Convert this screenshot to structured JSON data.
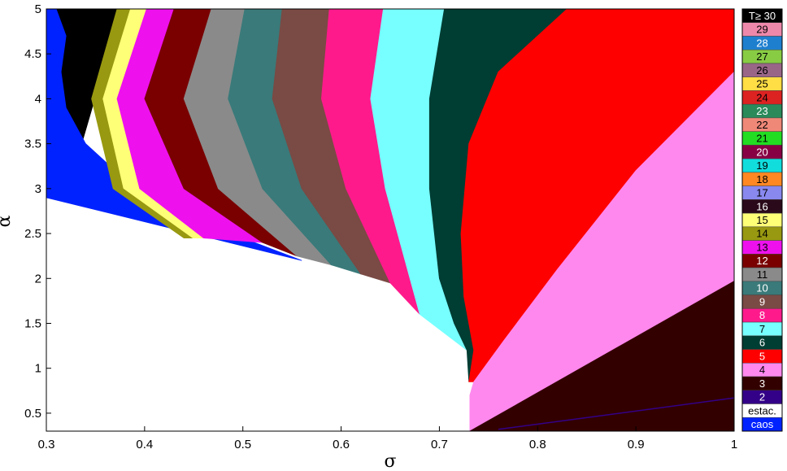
{
  "chart_data": {
    "type": "heatmap",
    "xlabel": "σ",
    "ylabel": "α",
    "xlim": [
      0.3,
      1.0
    ],
    "ylim": [
      0.3,
      5.0
    ],
    "x_ticks": [
      "0.3",
      "0.4",
      "0.5",
      "0.6",
      "0.7",
      "0.8",
      "0.9",
      "1"
    ],
    "y_ticks": [
      "0.5",
      "1",
      "1.5",
      "2",
      "2.5",
      "3",
      "3.5",
      "4",
      "4.5",
      "5"
    ],
    "legend_position": "right",
    "legend": [
      {
        "label": "T≥ 30",
        "color": "#000000",
        "text_color": "#ffffff"
      },
      {
        "label": "29",
        "color": "#ee88aa",
        "text_color": "#000000"
      },
      {
        "label": "28",
        "color": "#1f7fcf",
        "text_color": "#ffffff"
      },
      {
        "label": "27",
        "color": "#88cc44",
        "text_color": "#000000"
      },
      {
        "label": "26",
        "color": "#996688",
        "text_color": "#000000"
      },
      {
        "label": "25",
        "color": "#ffdd44",
        "text_color": "#000000"
      },
      {
        "label": "24",
        "color": "#dd2222",
        "text_color": "#000000"
      },
      {
        "label": "23",
        "color": "#2a8a5a",
        "text_color": "#ffffff"
      },
      {
        "label": "22",
        "color": "#f08878",
        "text_color": "#000000"
      },
      {
        "label": "21",
        "color": "#22dd22",
        "text_color": "#000000"
      },
      {
        "label": "20",
        "color": "#880044",
        "text_color": "#ffffff"
      },
      {
        "label": "19",
        "color": "#11dddd",
        "text_color": "#000000"
      },
      {
        "label": "18",
        "color": "#ff8822",
        "text_color": "#000000"
      },
      {
        "label": "17",
        "color": "#8888ee",
        "text_color": "#000000"
      },
      {
        "label": "16",
        "color": "#2a0a1a",
        "text_color": "#ffffff"
      },
      {
        "label": "15",
        "color": "#ffff77",
        "text_color": "#000000"
      },
      {
        "label": "14",
        "color": "#999911",
        "text_color": "#000000"
      },
      {
        "label": "13",
        "color": "#ee11ee",
        "text_color": "#000000"
      },
      {
        "label": "12",
        "color": "#7a0000",
        "text_color": "#ffffff"
      },
      {
        "label": "11",
        "color": "#8a8a8a",
        "text_color": "#000000"
      },
      {
        "label": "10",
        "color": "#3a7a7a",
        "text_color": "#ffffff"
      },
      {
        "label": "9",
        "color": "#7a4a44",
        "text_color": "#ffffff"
      },
      {
        "label": "8",
        "color": "#ff1a8c",
        "text_color": "#ffffff"
      },
      {
        "label": "7",
        "color": "#77ffff",
        "text_color": "#000000"
      },
      {
        "label": "6",
        "color": "#003d33",
        "text_color": "#ffffff"
      },
      {
        "label": "5",
        "color": "#ff0000",
        "text_color": "#ffffff"
      },
      {
        "label": "4",
        "color": "#ff88ee",
        "text_color": "#000000"
      },
      {
        "label": "3",
        "color": "#330000",
        "text_color": "#ffffff"
      },
      {
        "label": "2",
        "color": "#330088",
        "text_color": "#ffffff"
      },
      {
        "label": "estac.",
        "color": "#ffffff",
        "text_color": "#000000"
      },
      {
        "label": "caos",
        "color": "#0022ff",
        "text_color": "#ffffff"
      }
    ],
    "regions": [
      {
        "label": "T≥ 30",
        "color": "#000000",
        "polygon": [
          [
            0.3,
            5.0
          ],
          [
            0.372,
            5.0
          ],
          [
            0.352,
            4.1
          ],
          [
            0.336,
            3.5
          ],
          [
            0.33,
            3.1
          ],
          [
            0.335,
            2.85
          ],
          [
            0.31,
            2.88
          ],
          [
            0.3,
            2.9
          ]
        ]
      },
      {
        "label": "caos",
        "color": "#0022ff",
        "polygon": [
          [
            0.3,
            5.0
          ],
          [
            0.31,
            5.0
          ],
          [
            0.32,
            4.7
          ],
          [
            0.315,
            4.3
          ],
          [
            0.32,
            3.9
          ],
          [
            0.34,
            3.5
          ],
          [
            0.4,
            2.9
          ],
          [
            0.5,
            2.45
          ],
          [
            0.56,
            2.2
          ],
          [
            0.3,
            2.9
          ]
        ]
      },
      {
        "label": "15",
        "color": "#ffff77",
        "polygon": [
          [
            0.385,
            5.0
          ],
          [
            0.402,
            5.0
          ],
          [
            0.372,
            4.0
          ],
          [
            0.395,
            3.0
          ],
          [
            0.46,
            2.45
          ],
          [
            0.448,
            2.45
          ],
          [
            0.378,
            3.0
          ],
          [
            0.357,
            4.0
          ]
        ]
      },
      {
        "label": "14",
        "color": "#999911",
        "polygon": [
          [
            0.372,
            5.0
          ],
          [
            0.385,
            5.0
          ],
          [
            0.357,
            4.0
          ],
          [
            0.378,
            3.0
          ],
          [
            0.448,
            2.45
          ],
          [
            0.44,
            2.45
          ],
          [
            0.368,
            3.0
          ],
          [
            0.346,
            4.0
          ]
        ]
      },
      {
        "label": "13",
        "color": "#ee11ee",
        "polygon": [
          [
            0.402,
            5.0
          ],
          [
            0.43,
            5.0
          ],
          [
            0.4,
            4.0
          ],
          [
            0.44,
            3.0
          ],
          [
            0.52,
            2.4
          ],
          [
            0.46,
            2.45
          ],
          [
            0.395,
            3.0
          ],
          [
            0.372,
            4.0
          ]
        ]
      },
      {
        "label": "12",
        "color": "#7a0000",
        "polygon": [
          [
            0.43,
            5.0
          ],
          [
            0.468,
            5.0
          ],
          [
            0.44,
            4.0
          ],
          [
            0.475,
            3.0
          ],
          [
            0.555,
            2.25
          ],
          [
            0.52,
            2.4
          ],
          [
            0.44,
            3.0
          ],
          [
            0.4,
            4.0
          ]
        ]
      },
      {
        "label": "11",
        "color": "#8a8a8a",
        "polygon": [
          [
            0.468,
            5.0
          ],
          [
            0.502,
            5.0
          ],
          [
            0.485,
            4.0
          ],
          [
            0.52,
            3.0
          ],
          [
            0.59,
            2.15
          ],
          [
            0.555,
            2.25
          ],
          [
            0.475,
            3.0
          ],
          [
            0.44,
            4.0
          ]
        ]
      },
      {
        "label": "10",
        "color": "#3a7a7a",
        "polygon": [
          [
            0.502,
            5.0
          ],
          [
            0.54,
            5.0
          ],
          [
            0.53,
            4.0
          ],
          [
            0.56,
            3.0
          ],
          [
            0.62,
            2.05
          ],
          [
            0.59,
            2.15
          ],
          [
            0.52,
            3.0
          ],
          [
            0.485,
            4.0
          ]
        ]
      },
      {
        "label": "9",
        "color": "#7a4a44",
        "polygon": [
          [
            0.54,
            5.0
          ],
          [
            0.588,
            5.0
          ],
          [
            0.58,
            4.0
          ],
          [
            0.605,
            3.0
          ],
          [
            0.65,
            1.95
          ],
          [
            0.62,
            2.05
          ],
          [
            0.56,
            3.0
          ],
          [
            0.53,
            4.0
          ]
        ]
      },
      {
        "label": "8",
        "color": "#ff1a8c",
        "polygon": [
          [
            0.588,
            5.0
          ],
          [
            0.643,
            5.0
          ],
          [
            0.63,
            4.0
          ],
          [
            0.645,
            3.0
          ],
          [
            0.67,
            2.0
          ],
          [
            0.68,
            1.6
          ],
          [
            0.65,
            1.95
          ],
          [
            0.605,
            3.0
          ],
          [
            0.58,
            4.0
          ]
        ]
      },
      {
        "label": "7",
        "color": "#77ffff",
        "polygon": [
          [
            0.643,
            5.0
          ],
          [
            0.705,
            5.0
          ],
          [
            0.69,
            4.0
          ],
          [
            0.69,
            3.0
          ],
          [
            0.7,
            2.0
          ],
          [
            0.715,
            1.5
          ],
          [
            0.728,
            1.2
          ],
          [
            0.68,
            1.6
          ],
          [
            0.67,
            2.0
          ],
          [
            0.645,
            3.0
          ],
          [
            0.63,
            4.0
          ]
        ]
      },
      {
        "label": "6",
        "color": "#003d33",
        "polygon": [
          [
            0.705,
            5.0
          ],
          [
            0.83,
            5.0
          ],
          [
            0.76,
            4.3
          ],
          [
            0.73,
            3.5
          ],
          [
            0.722,
            2.5
          ],
          [
            0.725,
            1.8
          ],
          [
            0.735,
            1.2
          ],
          [
            0.73,
            0.85
          ],
          [
            0.728,
            1.2
          ],
          [
            0.715,
            1.5
          ],
          [
            0.7,
            2.0
          ],
          [
            0.69,
            3.0
          ],
          [
            0.69,
            4.0
          ]
        ]
      },
      {
        "label": "5",
        "color": "#ff0000",
        "polygon": [
          [
            0.83,
            5.0
          ],
          [
            1.0,
            5.0
          ],
          [
            1.0,
            4.3
          ],
          [
            0.9,
            3.2
          ],
          [
            0.82,
            2.1
          ],
          [
            0.765,
            1.3
          ],
          [
            0.735,
            0.85
          ],
          [
            0.73,
            0.85
          ],
          [
            0.735,
            1.2
          ],
          [
            0.725,
            1.8
          ],
          [
            0.722,
            2.5
          ],
          [
            0.73,
            3.5
          ],
          [
            0.76,
            4.3
          ]
        ]
      },
      {
        "label": "4",
        "color": "#ff88ee",
        "polygon": [
          [
            1.0,
            4.3
          ],
          [
            1.0,
            1.97
          ],
          [
            0.731,
            0.3
          ],
          [
            0.731,
            0.7
          ],
          [
            0.735,
            0.85
          ],
          [
            0.765,
            1.3
          ],
          [
            0.82,
            2.1
          ],
          [
            0.9,
            3.2
          ]
        ]
      },
      {
        "label": "3",
        "color": "#330000",
        "polygon": [
          [
            1.0,
            1.97
          ],
          [
            1.0,
            0.3
          ],
          [
            0.731,
            0.3
          ]
        ]
      }
    ],
    "lines": [
      {
        "label": "2",
        "color": "#330088",
        "points": [
          [
            0.76,
            0.32
          ],
          [
            0.85,
            0.45
          ],
          [
            1.0,
            0.67
          ]
        ]
      }
    ]
  }
}
